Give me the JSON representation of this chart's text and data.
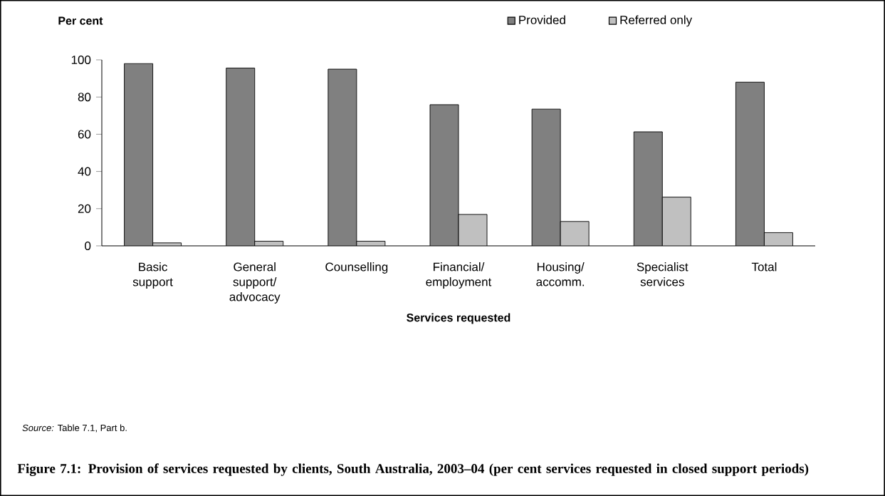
{
  "chart_data": {
    "type": "bar",
    "title": "Figure 7.1: Provision of services requested by clients, South Australia, 2003–04 (per cent services requested in closed support periods)",
    "xlabel": "Services requested",
    "ylabel": "Per cent",
    "categories": [
      "Basic support",
      "General support/ advocacy",
      "Counselling",
      "Financial/ employment",
      "Housing/ accomm.",
      "Specialist services",
      "Total"
    ],
    "series": [
      {
        "name": "Provided",
        "color": "#808080",
        "values": [
          98.0,
          95.6,
          95.0,
          75.9,
          73.5,
          61.3,
          88.0
        ]
      },
      {
        "name": "Referred only",
        "color": "#c0c0c0",
        "values": [
          1.6,
          2.5,
          2.5,
          16.9,
          13.1,
          26.2,
          7.1
        ]
      }
    ],
    "ylim": [
      0,
      100
    ],
    "yticks": [
      0,
      20,
      40,
      60,
      80,
      100
    ],
    "legend": "top right",
    "annotations": [
      "*Source:* Table 7.1, Part b."
    ]
  }
}
